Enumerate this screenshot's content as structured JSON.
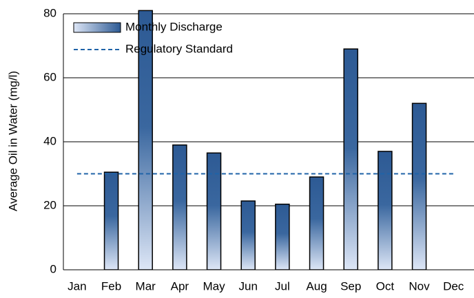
{
  "chart_data": {
    "type": "bar",
    "ylabel": "Average  Oil in Water (mg/l)",
    "categories": [
      "Jan",
      "Feb",
      "Mar",
      "Apr",
      "May",
      "Jun",
      "Jul",
      "Aug",
      "Sep",
      "Oct",
      "Nov",
      "Dec"
    ],
    "series": [
      {
        "name": "Monthly Discharge",
        "type": "bar",
        "color": "#2d5a94",
        "values": [
          null,
          30.5,
          81,
          39,
          36.5,
          21.5,
          20.5,
          29,
          69,
          37,
          52,
          null
        ]
      },
      {
        "name": "Regulatory Standard",
        "type": "line",
        "color": "#1f63a8",
        "values": [
          30,
          30,
          30,
          30,
          30,
          30,
          30,
          30,
          30,
          30,
          30,
          30
        ]
      }
    ],
    "ylim": [
      0,
      80
    ],
    "yticks": [
      0,
      20,
      40,
      60,
      80
    ],
    "grid": true
  }
}
